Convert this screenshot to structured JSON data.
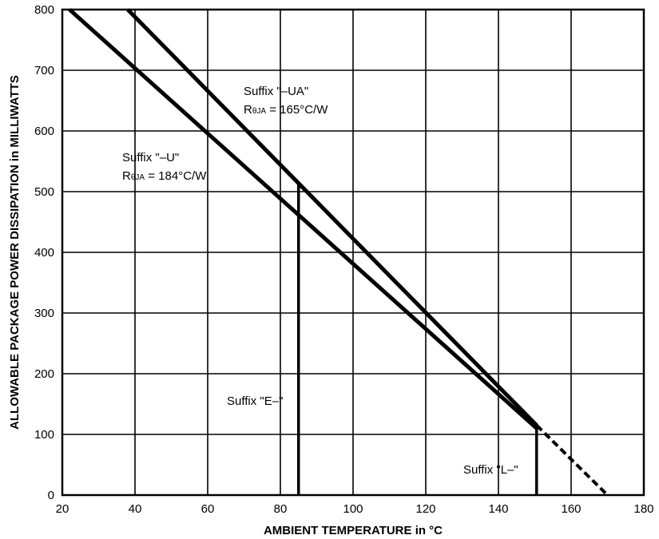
{
  "chart_data": {
    "type": "line",
    "title": "",
    "xlabel": "AMBIENT TEMPERATURE in °C",
    "ylabel": "ALLOWABLE PACKAGE POWER DISSIPATION in MILLIWATTS",
    "xlim": [
      20,
      180
    ],
    "ylim": [
      0,
      800
    ],
    "xticks": [
      "20",
      "40",
      "60",
      "80",
      "100",
      "120",
      "140",
      "160",
      "180"
    ],
    "yticks": [
      "0",
      "100",
      "200",
      "300",
      "400",
      "500",
      "600",
      "700",
      "800"
    ],
    "grid": true,
    "legend": "none",
    "series": [
      {
        "name": "Suffix \"–U\"",
        "x": [
          22,
          150.5
        ],
        "y": [
          800,
          110
        ]
      },
      {
        "name": "Suffix \"–UA\"",
        "x": [
          38,
          150.5
        ],
        "y": [
          800,
          115
        ]
      },
      {
        "name": "",
        "x": [
          150.5,
          170
        ],
        "y": [
          115,
          0
        ],
        "style": "dashed"
      }
    ],
    "cutoff_lines": [
      {
        "label": "Suffix \"E–\"",
        "x": 85,
        "y_top": 512
      },
      {
        "label": "Suffix \"L–\"",
        "x": 150.5,
        "y_top": 113
      }
    ],
    "annotations": [
      {
        "id": "ua",
        "line1": "Suffix \"–UA\"",
        "line2_prefix": "R",
        "line2_sub": "θJA",
        "line2_suffix": " = 165°C/W"
      },
      {
        "id": "u",
        "line1": "Suffix \"–U\"",
        "line2_prefix": "R",
        "line2_sub": "θJA",
        "line2_suffix": " = 184°C/W"
      },
      {
        "id": "e",
        "line1": "Suffix \"E–\""
      },
      {
        "id": "l",
        "line1": "Suffix \"L–\""
      }
    ]
  }
}
